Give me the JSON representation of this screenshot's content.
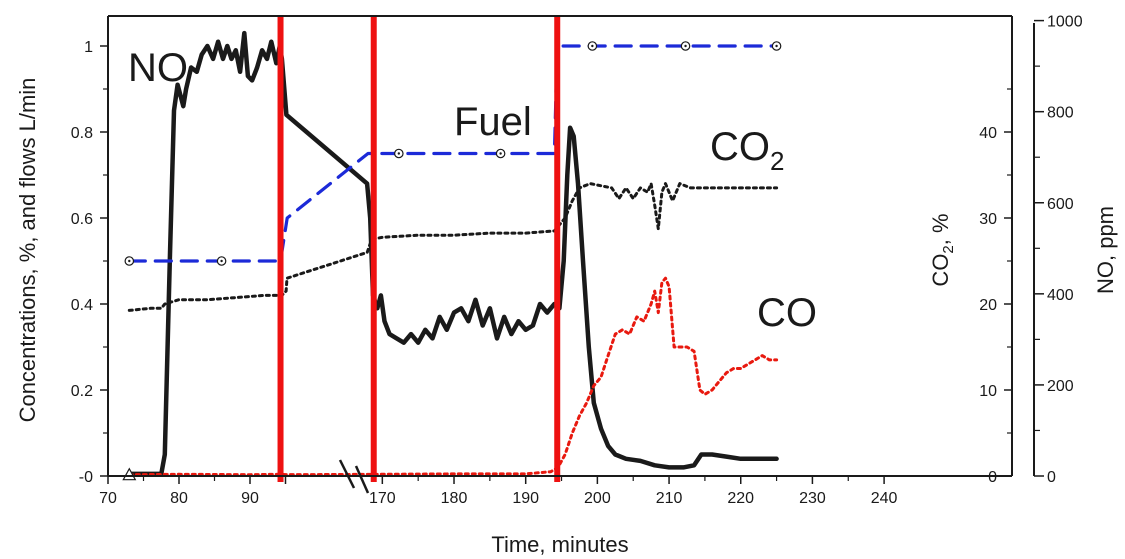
{
  "chart_data": {
    "type": "line",
    "xlabel": "Time, minutes",
    "ylabel_left": "Concentrations, %, and flows L/min",
    "ylabel_right_inner": "CO2, %",
    "ylabel_right_outer": "NO, ppm",
    "x_ticks": [
      "70",
      "80",
      "90",
      "",
      "170",
      "180",
      "190",
      "200",
      "210",
      "220",
      "230",
      "240"
    ],
    "left_ticks": [
      "-0",
      "0.2",
      "0.4",
      "0.6",
      "0.8",
      "1"
    ],
    "co2_ticks": [
      "0",
      "10",
      "20",
      "30",
      "40"
    ],
    "no_ticks": [
      "0",
      "200",
      "400",
      "600",
      "800",
      "1000"
    ],
    "xlim": [
      70,
      240
    ],
    "ylim_left": [
      0,
      1
    ],
    "ylim_co2": [
      0,
      50
    ],
    "ylim_no": [
      0,
      1000
    ],
    "grid": false,
    "x_axis_break_between": [
      "95",
      "168"
    ],
    "annotations": {
      "no": "NO",
      "fuel": "Fuel",
      "co2": "CO",
      "co2_sub": "2",
      "co": "CO"
    },
    "event_lines_x": [
      94.3,
      168.8,
      194.4
    ],
    "series": [
      {
        "name": "NO",
        "color": "#1a1a1a",
        "style": "solid",
        "points": [
          [
            73,
            0.005
          ],
          [
            77.5,
            0.005
          ],
          [
            78,
            0.05
          ],
          [
            78.7,
            0.5
          ],
          [
            79.3,
            0.85
          ],
          [
            79.8,
            0.91
          ],
          [
            80.6,
            0.86
          ],
          [
            81,
            0.9
          ],
          [
            81.7,
            0.95
          ],
          [
            82.5,
            0.94
          ],
          [
            83.2,
            0.98
          ],
          [
            84,
            1.0
          ],
          [
            84.8,
            0.97
          ],
          [
            85.5,
            1.01
          ],
          [
            86.2,
            0.97
          ],
          [
            86.8,
            1.0
          ],
          [
            87.4,
            0.97
          ],
          [
            88,
            0.99
          ],
          [
            88.6,
            0.94
          ],
          [
            89.2,
            1.03
          ],
          [
            89.7,
            0.93
          ],
          [
            90.3,
            0.92
          ],
          [
            91,
            0.95
          ],
          [
            91.7,
            0.99
          ],
          [
            92.4,
            0.97
          ],
          [
            93,
            1.01
          ],
          [
            93.7,
            0.96
          ],
          [
            94.2,
            1.0
          ],
          [
            94.5,
            0.97
          ],
          [
            95.2,
            0.86
          ],
          [
            95.8,
            0.84
          ],
          [
            167.2,
            0.68
          ],
          [
            168.3,
            0.6
          ],
          [
            168.7,
            0.42
          ],
          [
            169.3,
            0.39
          ],
          [
            169.8,
            0.42
          ],
          [
            170.3,
            0.36
          ],
          [
            171,
            0.33
          ],
          [
            172,
            0.32
          ],
          [
            173,
            0.31
          ],
          [
            174,
            0.33
          ],
          [
            175,
            0.31
          ],
          [
            176,
            0.34
          ],
          [
            177,
            0.32
          ],
          [
            178,
            0.37
          ],
          [
            179,
            0.34
          ],
          [
            180,
            0.38
          ],
          [
            181,
            0.39
          ],
          [
            182,
            0.36
          ],
          [
            183,
            0.41
          ],
          [
            184,
            0.35
          ],
          [
            185,
            0.39
          ],
          [
            186,
            0.32
          ],
          [
            187,
            0.37
          ],
          [
            188,
            0.33
          ],
          [
            189,
            0.36
          ],
          [
            190,
            0.34
          ],
          [
            191,
            0.35
          ],
          [
            192,
            0.4
          ],
          [
            193,
            0.38
          ],
          [
            194,
            0.4
          ],
          [
            194.7,
            0.39
          ],
          [
            195.3,
            0.5
          ],
          [
            195.8,
            0.7
          ],
          [
            196.2,
            0.81
          ],
          [
            196.7,
            0.79
          ],
          [
            197.3,
            0.68
          ],
          [
            198,
            0.5
          ],
          [
            198.8,
            0.3
          ],
          [
            199.5,
            0.17
          ],
          [
            200.5,
            0.11
          ],
          [
            201.5,
            0.07
          ],
          [
            202.5,
            0.05
          ],
          [
            204,
            0.04
          ],
          [
            206,
            0.035
          ],
          [
            208,
            0.025
          ],
          [
            210,
            0.02
          ],
          [
            212,
            0.02
          ],
          [
            213.5,
            0.025
          ],
          [
            214.5,
            0.05
          ],
          [
            216,
            0.05
          ],
          [
            218,
            0.045
          ],
          [
            220,
            0.04
          ],
          [
            222,
            0.04
          ],
          [
            225,
            0.04
          ]
        ]
      },
      {
        "name": "CO2",
        "color": "#1a1a1a",
        "style": "dotted",
        "points": [
          [
            73,
            0.385
          ],
          [
            76,
            0.39
          ],
          [
            77.5,
            0.39
          ],
          [
            78,
            0.4
          ],
          [
            80,
            0.41
          ],
          [
            84,
            0.41
          ],
          [
            88,
            0.415
          ],
          [
            92,
            0.42
          ],
          [
            94.5,
            0.42
          ],
          [
            95.5,
            0.43
          ],
          [
            96.3,
            0.46
          ],
          [
            167.3,
            0.52
          ],
          [
            168.5,
            0.55
          ],
          [
            170,
            0.555
          ],
          [
            175,
            0.56
          ],
          [
            180,
            0.56
          ],
          [
            185,
            0.565
          ],
          [
            190,
            0.565
          ],
          [
            194,
            0.57
          ],
          [
            195.5,
            0.6
          ],
          [
            196.5,
            0.64
          ],
          [
            197.5,
            0.67
          ],
          [
            199,
            0.68
          ],
          [
            202,
            0.67
          ],
          [
            203,
            0.645
          ],
          [
            204,
            0.67
          ],
          [
            205,
            0.645
          ],
          [
            206,
            0.67
          ],
          [
            207,
            0.66
          ],
          [
            207.5,
            0.68
          ],
          [
            208,
            0.63
          ],
          [
            208.5,
            0.575
          ],
          [
            209,
            0.66
          ],
          [
            209.5,
            0.68
          ],
          [
            210.5,
            0.64
          ],
          [
            211.5,
            0.68
          ],
          [
            213,
            0.67
          ],
          [
            216,
            0.67
          ],
          [
            220,
            0.67
          ],
          [
            225,
            0.67
          ]
        ]
      },
      {
        "name": "CO",
        "color": "#e8190f",
        "style": "dotted",
        "points": [
          [
            73,
            0.003
          ],
          [
            80,
            0.004
          ],
          [
            90,
            0.003
          ],
          [
            94,
            0.004
          ],
          [
            96.5,
            0.003
          ],
          [
            170,
            0.004
          ],
          [
            180,
            0.005
          ],
          [
            190,
            0.005
          ],
          [
            193.5,
            0.01
          ],
          [
            194.5,
            0.02
          ],
          [
            195.5,
            0.05
          ],
          [
            196.5,
            0.1
          ],
          [
            197.5,
            0.14
          ],
          [
            198.5,
            0.17
          ],
          [
            199.5,
            0.21
          ],
          [
            200.5,
            0.23
          ],
          [
            201.5,
            0.28
          ],
          [
            202.5,
            0.33
          ],
          [
            203.5,
            0.34
          ],
          [
            204.5,
            0.33
          ],
          [
            205.5,
            0.37
          ],
          [
            206.5,
            0.36
          ],
          [
            207.5,
            0.4
          ],
          [
            208,
            0.43
          ],
          [
            208.5,
            0.38
          ],
          [
            209,
            0.45
          ],
          [
            209.5,
            0.46
          ],
          [
            210,
            0.44
          ],
          [
            210.7,
            0.3
          ],
          [
            211.5,
            0.3
          ],
          [
            212.5,
            0.3
          ],
          [
            213.5,
            0.29
          ],
          [
            214.3,
            0.2
          ],
          [
            215,
            0.19
          ],
          [
            216,
            0.2
          ],
          [
            217,
            0.22
          ],
          [
            218,
            0.24
          ],
          [
            219,
            0.25
          ],
          [
            220,
            0.25
          ],
          [
            221,
            0.26
          ],
          [
            222,
            0.27
          ],
          [
            223,
            0.28
          ],
          [
            224,
            0.27
          ],
          [
            225,
            0.27
          ]
        ]
      },
      {
        "name": "Fuel",
        "color": "#1c2ad8",
        "style": "dashed",
        "markers": [
          [
            73,
            0.5
          ],
          [
            86,
            0.5
          ],
          [
            172.3,
            0.75
          ],
          [
            186.5,
            0.75
          ],
          [
            199.3,
            1.0
          ],
          [
            212.3,
            1.0
          ],
          [
            225,
            1.0
          ]
        ],
        "points": [
          [
            73,
            0.5
          ],
          [
            94.3,
            0.5
          ],
          [
            96.5,
            0.6
          ],
          [
            168,
            0.75
          ],
          [
            194,
            0.75
          ],
          [
            194.4,
            1.0
          ],
          [
            225,
            1.0
          ]
        ]
      }
    ],
    "triangle_marker": [
      73,
      0.003
    ]
  }
}
